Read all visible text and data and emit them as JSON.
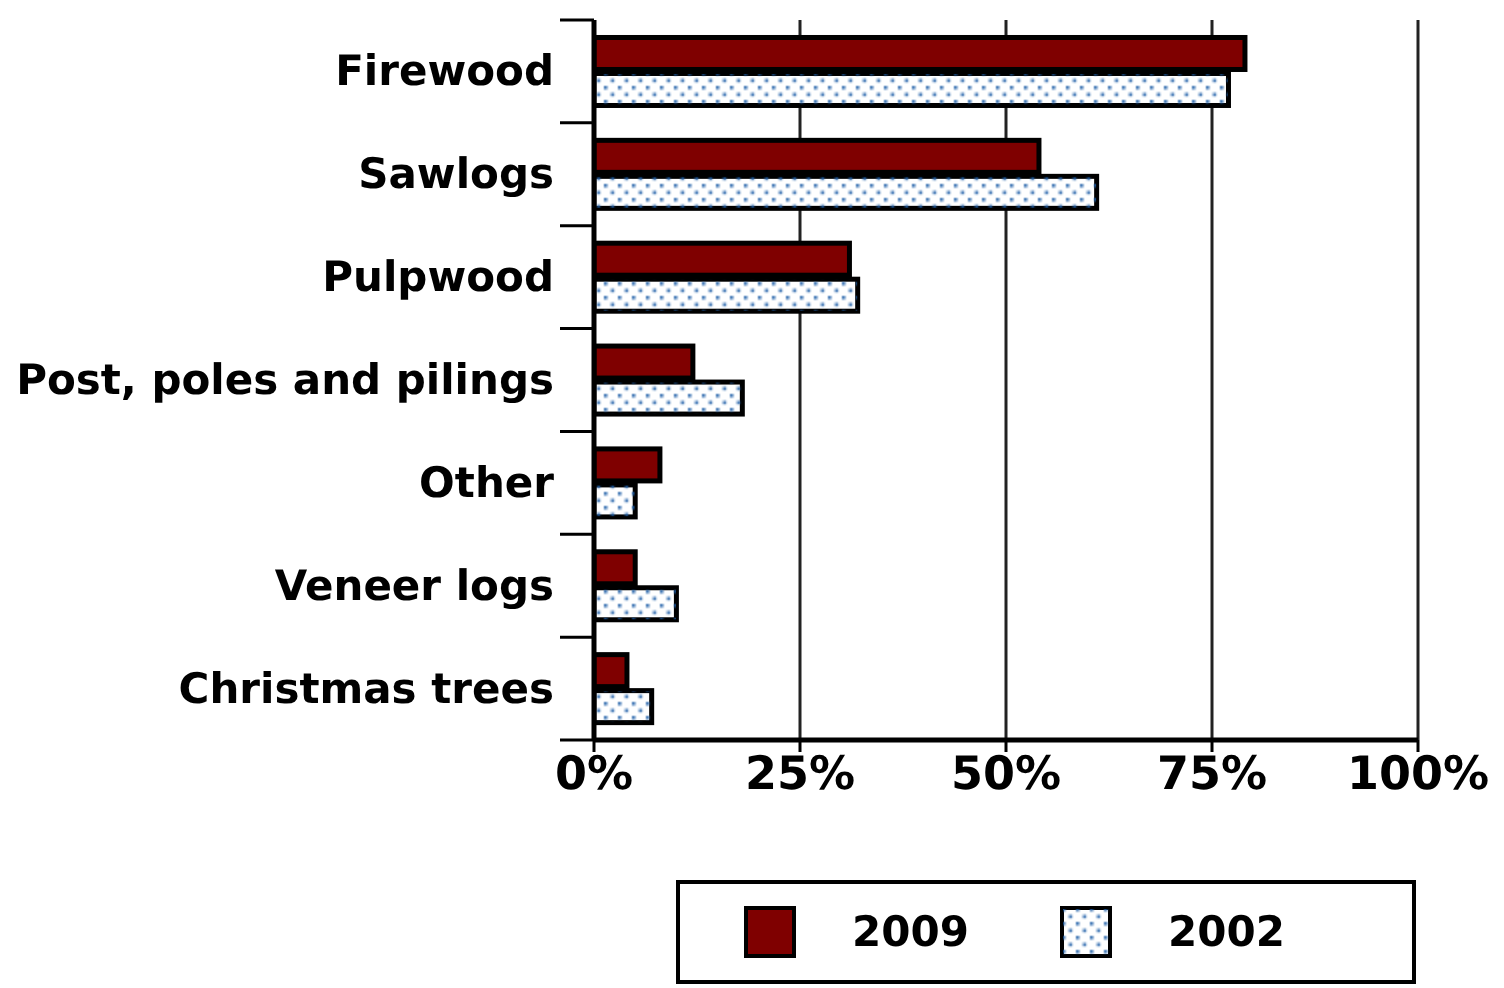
{
  "chart_data": {
    "type": "bar",
    "orientation": "horizontal",
    "categories": [
      "Firewood",
      "Sawlogs",
      "Pulpwood",
      "Post, poles and pilings",
      "Other",
      "Veneer logs",
      "Christmas trees"
    ],
    "series": [
      {
        "name": "2009",
        "color": "#7f0000",
        "values": [
          79,
          54,
          31,
          12,
          8,
          5,
          4
        ]
      },
      {
        "name": "2002",
        "color": "#ffffff",
        "values": [
          77,
          61,
          32,
          18,
          5,
          10,
          7
        ]
      }
    ],
    "xlim": [
      0,
      100
    ],
    "xticks": [
      {
        "value": 0,
        "label": "0%"
      },
      {
        "value": 25,
        "label": "25%"
      },
      {
        "value": 50,
        "label": "50%"
      },
      {
        "value": 75,
        "label": "75%"
      },
      {
        "value": 100,
        "label": "100%"
      }
    ],
    "grid": "x",
    "legend": "bottom"
  }
}
